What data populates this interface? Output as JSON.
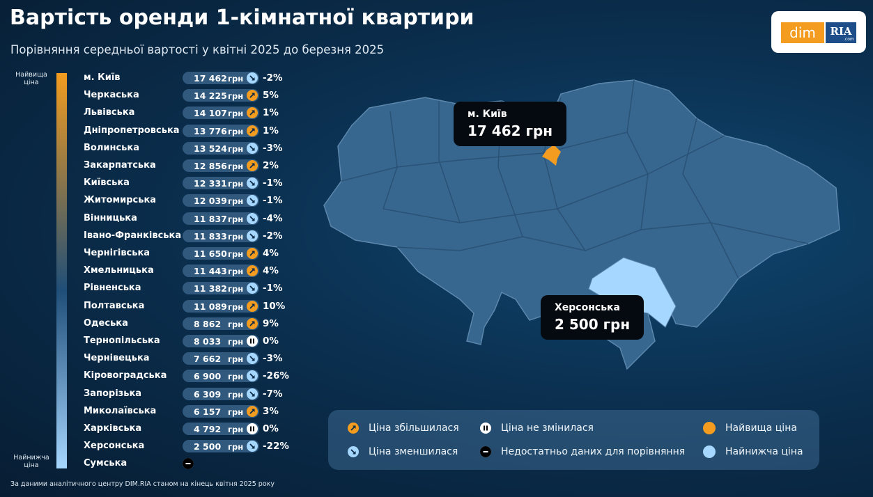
{
  "header": {
    "title": "Вартість оренди 1-кімнатної квартири",
    "subtitle": "Порівняння середньої вартості у квітні 2025 до березня 2025"
  },
  "logo": {
    "left": "dim",
    "right": "RIA",
    "sub": ".com"
  },
  "scale": {
    "top": "Найвища ціна",
    "bottom": "Найнижча ціна"
  },
  "table": {
    "unit": "грн",
    "rows": [
      {
        "region": "м. Київ",
        "price": "17 462",
        "change": "-2%",
        "trend": "down"
      },
      {
        "region": "Черкаська",
        "price": "14 225",
        "change": "5%",
        "trend": "up"
      },
      {
        "region": "Львівська",
        "price": "14 107",
        "change": "1%",
        "trend": "up"
      },
      {
        "region": "Дніпропетровська",
        "price": "13 776",
        "change": "1%",
        "trend": "up"
      },
      {
        "region": "Волинська",
        "price": "13 524",
        "change": "-3%",
        "trend": "down"
      },
      {
        "region": "Закарпатська",
        "price": "12 856",
        "change": "2%",
        "trend": "up"
      },
      {
        "region": "Київська",
        "price": "12 331",
        "change": "-1%",
        "trend": "down"
      },
      {
        "region": "Житомирська",
        "price": "12 039",
        "change": "-1%",
        "trend": "down"
      },
      {
        "region": "Вінницька",
        "price": "11 837",
        "change": "-4%",
        "trend": "down"
      },
      {
        "region": "Івано-Франківська",
        "price": "11 833",
        "change": "-2%",
        "trend": "down"
      },
      {
        "region": "Чернігівська",
        "price": "11 650",
        "change": "4%",
        "trend": "up"
      },
      {
        "region": "Хмельницька",
        "price": "11 443",
        "change": "4%",
        "trend": "up"
      },
      {
        "region": "Рівненська",
        "price": "11 382",
        "change": "-1%",
        "trend": "down"
      },
      {
        "region": "Полтавська",
        "price": "11 089",
        "change": "10%",
        "trend": "up"
      },
      {
        "region": "Одеська",
        "price": "8 862",
        "change": "9%",
        "trend": "up"
      },
      {
        "region": "Тернопільська",
        "price": "8 033",
        "change": "0%",
        "trend": "same"
      },
      {
        "region": "Чернівецька",
        "price": "7 662",
        "change": "-3%",
        "trend": "down"
      },
      {
        "region": "Кіровоградська",
        "price": "6 900",
        "change": "-26%",
        "trend": "down"
      },
      {
        "region": "Запорізька",
        "price": "6 309",
        "change": "-7%",
        "trend": "down"
      },
      {
        "region": "Миколаївська",
        "price": "6 157",
        "change": "3%",
        "trend": "up"
      },
      {
        "region": "Харківська",
        "price": "4 792",
        "change": "0%",
        "trend": "same"
      },
      {
        "region": "Херсонська",
        "price": "2 500",
        "change": "-22%",
        "trend": "down"
      },
      {
        "region": "Сумська",
        "trend": "none"
      }
    ]
  },
  "map": {
    "callouts": [
      {
        "label": "м. Київ",
        "value": "17 462 грн"
      },
      {
        "label": "Херсонська",
        "value": "2 500 грн"
      }
    ]
  },
  "legend": {
    "items": [
      {
        "text": "Ціна збільшилася",
        "icon": "up"
      },
      {
        "text": "Ціна не змінилася",
        "icon": "same"
      },
      {
        "text": "Найвища ціна",
        "icon": "high"
      },
      {
        "text": "Ціна зменшилася",
        "icon": "down"
      },
      {
        "text": "Недостатньо даних для порівняння",
        "icon": "none"
      },
      {
        "text": "Найнижча ціна",
        "icon": "low"
      }
    ]
  },
  "footnote": "За даними аналітичного центру DIM.RIA станом на кінець квітня 2025 року"
}
